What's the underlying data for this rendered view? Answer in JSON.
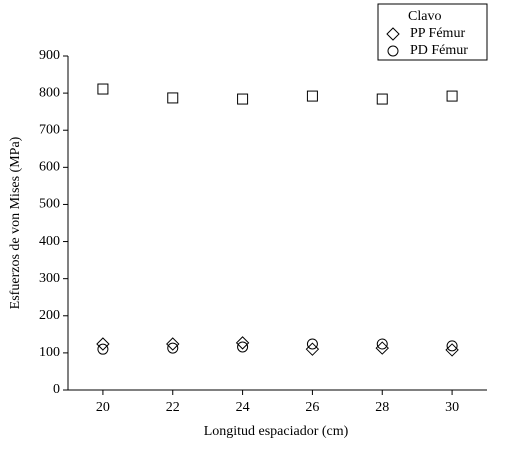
{
  "chart_data": {
    "type": "scatter",
    "xlabel": "Longitud espaciador (cm)",
    "ylabel": "Esfuerzos de von Mises (MPa)",
    "x": [
      20,
      22,
      24,
      26,
      28,
      30
    ],
    "series": [
      {
        "name": "Clavo",
        "color": "#000000",
        "marker": "square",
        "values": [
          811,
          787,
          784,
          792,
          784,
          792
        ]
      },
      {
        "name": "PP Fémur",
        "color": "#000000",
        "marker": "diamond",
        "values": [
          124,
          124,
          127,
          110,
          113,
          108
        ]
      },
      {
        "name": "PD Fémur",
        "color": "#000000",
        "marker": "circle",
        "values": [
          110,
          113,
          116,
          124,
          124,
          119
        ]
      }
    ],
    "xlim": [
      19,
      31
    ],
    "xticks": [
      20,
      22,
      24,
      26,
      28,
      30
    ],
    "ylim": [
      0,
      900
    ],
    "yticks": [
      0,
      100,
      200,
      300,
      400,
      500,
      600,
      700,
      800,
      900
    ],
    "grid": false,
    "legend": "top-right"
  }
}
